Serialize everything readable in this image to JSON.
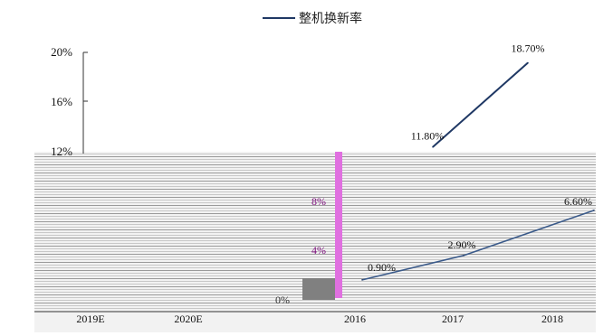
{
  "chart_data": {
    "type": "line",
    "title": "",
    "xlabel": "",
    "ylabel": "",
    "legend": {
      "position": "top-center",
      "label": "整机换新率"
    },
    "series": [
      {
        "name": "整机换新率",
        "color": "#1f3864",
        "points": [
          {
            "x": "2016",
            "y": 0.9,
            "label": "0.90%"
          },
          {
            "x": "2017",
            "y": 2.9,
            "label": "2.90%"
          },
          {
            "x": "2018",
            "y": 6.6,
            "label": "6.60%"
          },
          {
            "x": "2019E",
            "y": 11.8,
            "label": "11.80%"
          },
          {
            "x": "2020E",
            "y": 18.7,
            "label": "18.70%"
          }
        ]
      }
    ],
    "left_axis": {
      "ticks": [
        "20%",
        "16%",
        "12%"
      ]
    },
    "inner_axis": {
      "ticks": [
        "8%",
        "4%",
        "0%"
      ]
    },
    "bottom_categories": [
      "2019E",
      "2020E",
      "2016",
      "2017",
      "2018"
    ],
    "grid": false
  }
}
